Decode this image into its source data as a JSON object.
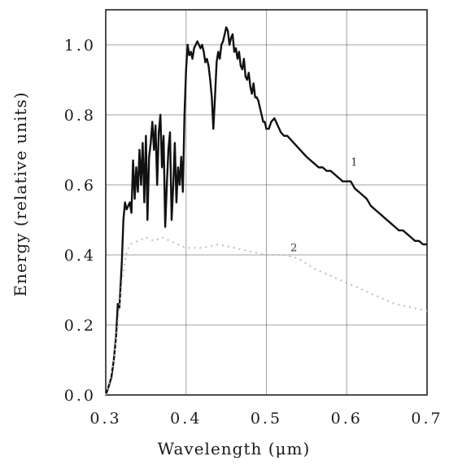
{
  "chart_data": {
    "type": "line",
    "title": "",
    "xlabel": "Wavelength (μm)",
    "ylabel": "Energy (relative units)",
    "xlim": [
      0.3,
      0.7
    ],
    "ylim": [
      0.0,
      1.1
    ],
    "grid": true,
    "x_ticks": [
      {
        "value": 0.3,
        "label": "0.3"
      },
      {
        "value": 0.4,
        "label": "0.4"
      },
      {
        "value": 0.5,
        "label": "0.5"
      },
      {
        "value": 0.6,
        "label": "0.6"
      },
      {
        "value": 0.7,
        "label": "0.7"
      }
    ],
    "y_ticks": [
      {
        "value": 0.0,
        "label": "0.0"
      },
      {
        "value": 0.2,
        "label": "0.2"
      },
      {
        "value": 0.4,
        "label": "0.4"
      },
      {
        "value": 0.6,
        "label": "0.6"
      },
      {
        "value": 0.8,
        "label": "0.8"
      },
      {
        "value": 1.0,
        "label": "1.0"
      }
    ],
    "series": [
      {
        "label": "1",
        "label_at": [
          0.605,
          0.655
        ],
        "style": "solid",
        "color": "#111111",
        "points": [
          [
            0.3,
            0.0
          ],
          [
            0.303,
            0.02
          ],
          [
            0.307,
            0.05
          ],
          [
            0.31,
            0.1
          ],
          [
            0.313,
            0.17
          ],
          [
            0.315,
            0.26
          ],
          [
            0.317,
            0.25
          ],
          [
            0.32,
            0.38
          ],
          [
            0.322,
            0.5
          ],
          [
            0.324,
            0.55
          ],
          [
            0.326,
            0.53
          ],
          [
            0.328,
            0.54
          ],
          [
            0.33,
            0.55
          ],
          [
            0.332,
            0.52
          ],
          [
            0.334,
            0.67
          ],
          [
            0.336,
            0.56
          ],
          [
            0.338,
            0.65
          ],
          [
            0.34,
            0.58
          ],
          [
            0.342,
            0.7
          ],
          [
            0.344,
            0.6
          ],
          [
            0.346,
            0.72
          ],
          [
            0.348,
            0.55
          ],
          [
            0.35,
            0.74
          ],
          [
            0.352,
            0.5
          ],
          [
            0.354,
            0.68
          ],
          [
            0.356,
            0.72
          ],
          [
            0.358,
            0.78
          ],
          [
            0.36,
            0.7
          ],
          [
            0.362,
            0.77
          ],
          [
            0.364,
            0.6
          ],
          [
            0.366,
            0.75
          ],
          [
            0.368,
            0.8
          ],
          [
            0.37,
            0.65
          ],
          [
            0.372,
            0.74
          ],
          [
            0.374,
            0.48
          ],
          [
            0.376,
            0.6
          ],
          [
            0.378,
            0.7
          ],
          [
            0.38,
            0.75
          ],
          [
            0.382,
            0.5
          ],
          [
            0.384,
            0.6
          ],
          [
            0.386,
            0.72
          ],
          [
            0.388,
            0.55
          ],
          [
            0.39,
            0.65
          ],
          [
            0.392,
            0.6
          ],
          [
            0.394,
            0.68
          ],
          [
            0.396,
            0.58
          ],
          [
            0.398,
            0.8
          ],
          [
            0.4,
            0.93
          ],
          [
            0.402,
            1.0
          ],
          [
            0.404,
            0.97
          ],
          [
            0.406,
            0.98
          ],
          [
            0.408,
            0.96
          ],
          [
            0.41,
            0.99
          ],
          [
            0.412,
            1.0
          ],
          [
            0.414,
            1.01
          ],
          [
            0.416,
            1.0
          ],
          [
            0.418,
            0.99
          ],
          [
            0.42,
            1.0
          ],
          [
            0.422,
            0.98
          ],
          [
            0.424,
            0.95
          ],
          [
            0.426,
            0.96
          ],
          [
            0.428,
            0.94
          ],
          [
            0.43,
            0.9
          ],
          [
            0.432,
            0.85
          ],
          [
            0.434,
            0.76
          ],
          [
            0.436,
            0.85
          ],
          [
            0.438,
            0.95
          ],
          [
            0.44,
            0.98
          ],
          [
            0.442,
            0.96
          ],
          [
            0.444,
            1.0
          ],
          [
            0.446,
            1.01
          ],
          [
            0.448,
            1.03
          ],
          [
            0.45,
            1.05
          ],
          [
            0.452,
            1.04
          ],
          [
            0.454,
            1.0
          ],
          [
            0.456,
            1.02
          ],
          [
            0.458,
            1.03
          ],
          [
            0.46,
            0.98
          ],
          [
            0.462,
            0.99
          ],
          [
            0.464,
            0.96
          ],
          [
            0.466,
            0.98
          ],
          [
            0.468,
            0.94
          ],
          [
            0.47,
            0.93
          ],
          [
            0.472,
            0.96
          ],
          [
            0.474,
            0.91
          ],
          [
            0.476,
            0.9
          ],
          [
            0.478,
            0.92
          ],
          [
            0.48,
            0.88
          ],
          [
            0.482,
            0.86
          ],
          [
            0.484,
            0.89
          ],
          [
            0.486,
            0.85
          ],
          [
            0.488,
            0.85
          ],
          [
            0.49,
            0.84
          ],
          [
            0.492,
            0.82
          ],
          [
            0.494,
            0.8
          ],
          [
            0.496,
            0.78
          ],
          [
            0.498,
            0.78
          ],
          [
            0.5,
            0.76
          ],
          [
            0.503,
            0.76
          ],
          [
            0.506,
            0.78
          ],
          [
            0.51,
            0.79
          ],
          [
            0.514,
            0.77
          ],
          [
            0.518,
            0.75
          ],
          [
            0.522,
            0.74
          ],
          [
            0.526,
            0.74
          ],
          [
            0.53,
            0.73
          ],
          [
            0.534,
            0.72
          ],
          [
            0.538,
            0.71
          ],
          [
            0.542,
            0.7
          ],
          [
            0.546,
            0.69
          ],
          [
            0.55,
            0.68
          ],
          [
            0.555,
            0.67
          ],
          [
            0.56,
            0.66
          ],
          [
            0.565,
            0.65
          ],
          [
            0.57,
            0.65
          ],
          [
            0.575,
            0.64
          ],
          [
            0.58,
            0.64
          ],
          [
            0.585,
            0.63
          ],
          [
            0.59,
            0.62
          ],
          [
            0.595,
            0.61
          ],
          [
            0.6,
            0.61
          ],
          [
            0.605,
            0.61
          ],
          [
            0.61,
            0.59
          ],
          [
            0.615,
            0.58
          ],
          [
            0.62,
            0.57
          ],
          [
            0.625,
            0.56
          ],
          [
            0.63,
            0.54
          ],
          [
            0.635,
            0.53
          ],
          [
            0.64,
            0.52
          ],
          [
            0.645,
            0.51
          ],
          [
            0.65,
            0.5
          ],
          [
            0.655,
            0.49
          ],
          [
            0.66,
            0.48
          ],
          [
            0.665,
            0.47
          ],
          [
            0.67,
            0.47
          ],
          [
            0.675,
            0.46
          ],
          [
            0.68,
            0.45
          ],
          [
            0.685,
            0.44
          ],
          [
            0.69,
            0.44
          ],
          [
            0.695,
            0.43
          ],
          [
            0.7,
            0.43
          ]
        ]
      },
      {
        "label": "2",
        "label_at": [
          0.53,
          0.41
        ],
        "style": "dotted",
        "color": "#bdbdbd",
        "points": [
          [
            0.3,
            0.0
          ],
          [
            0.305,
            0.04
          ],
          [
            0.31,
            0.1
          ],
          [
            0.315,
            0.2
          ],
          [
            0.32,
            0.32
          ],
          [
            0.325,
            0.4
          ],
          [
            0.33,
            0.43
          ],
          [
            0.34,
            0.44
          ],
          [
            0.35,
            0.45
          ],
          [
            0.36,
            0.44
          ],
          [
            0.37,
            0.45
          ],
          [
            0.38,
            0.44
          ],
          [
            0.39,
            0.43
          ],
          [
            0.4,
            0.42
          ],
          [
            0.42,
            0.42
          ],
          [
            0.44,
            0.43
          ],
          [
            0.46,
            0.42
          ],
          [
            0.48,
            0.41
          ],
          [
            0.5,
            0.4
          ],
          [
            0.52,
            0.4
          ],
          [
            0.54,
            0.39
          ],
          [
            0.56,
            0.36
          ],
          [
            0.58,
            0.34
          ],
          [
            0.6,
            0.32
          ],
          [
            0.62,
            0.3
          ],
          [
            0.64,
            0.28
          ],
          [
            0.66,
            0.26
          ],
          [
            0.68,
            0.25
          ],
          [
            0.7,
            0.24
          ]
        ]
      }
    ]
  }
}
